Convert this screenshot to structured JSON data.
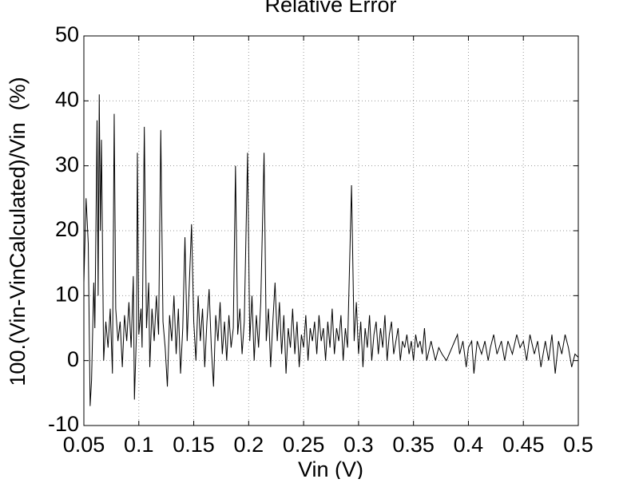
{
  "chart_data": {
    "type": "line",
    "title": "Relative Error",
    "x_label": "Vin (V)",
    "y_label": "100.(Vin-VinCalculated)/Vin  (%)",
    "x": [
      0.05,
      0.052,
      0.054,
      0.0557,
      0.057,
      0.059,
      0.06,
      0.062,
      0.063,
      0.064,
      0.065,
      0.066,
      0.068,
      0.07,
      0.072,
      0.074,
      0.076,
      0.0776,
      0.079,
      0.081,
      0.083,
      0.085,
      0.087,
      0.089,
      0.091,
      0.093,
      0.095,
      0.096,
      0.098,
      0.0987,
      0.1,
      0.102,
      0.103,
      0.105,
      0.107,
      0.109,
      0.11,
      0.112,
      0.114,
      0.116,
      0.118,
      0.12,
      0.122,
      0.124,
      0.126,
      0.128,
      0.13,
      0.132,
      0.134,
      0.136,
      0.138,
      0.14,
      0.142,
      0.144,
      0.146,
      0.148,
      0.15,
      0.152,
      0.154,
      0.156,
      0.158,
      0.16,
      0.162,
      0.164,
      0.166,
      0.168,
      0.17,
      0.172,
      0.174,
      0.176,
      0.178,
      0.18,
      0.182,
      0.184,
      0.186,
      0.188,
      0.19,
      0.192,
      0.194,
      0.196,
      0.199,
      0.201,
      0.203,
      0.205,
      0.207,
      0.209,
      0.211,
      0.214,
      0.216,
      0.218,
      0.22,
      0.222,
      0.224,
      0.226,
      0.228,
      0.23,
      0.232,
      0.234,
      0.236,
      0.238,
      0.24,
      0.242,
      0.244,
      0.246,
      0.248,
      0.25,
      0.252,
      0.254,
      0.256,
      0.258,
      0.26,
      0.262,
      0.264,
      0.266,
      0.268,
      0.27,
      0.272,
      0.274,
      0.276,
      0.278,
      0.28,
      0.282,
      0.284,
      0.286,
      0.288,
      0.29,
      0.2936,
      0.296,
      0.298,
      0.3,
      0.302,
      0.304,
      0.306,
      0.308,
      0.31,
      0.312,
      0.314,
      0.316,
      0.318,
      0.32,
      0.322,
      0.324,
      0.326,
      0.328,
      0.33,
      0.332,
      0.334,
      0.336,
      0.338,
      0.34,
      0.342,
      0.344,
      0.346,
      0.348,
      0.35,
      0.352,
      0.354,
      0.356,
      0.358,
      0.36,
      0.362,
      0.366,
      0.37,
      0.373,
      0.376,
      0.38,
      0.39,
      0.392,
      0.395,
      0.398,
      0.4,
      0.403,
      0.405,
      0.408,
      0.412,
      0.415,
      0.418,
      0.42,
      0.423,
      0.426,
      0.43,
      0.433,
      0.436,
      0.44,
      0.444,
      0.447,
      0.45,
      0.453,
      0.456,
      0.46,
      0.463,
      0.466,
      0.47,
      0.473,
      0.476,
      0.479,
      0.482,
      0.485,
      0.488,
      0.491,
      0.494,
      0.497,
      0.5
    ],
    "values": [
      12,
      25,
      18,
      -7,
      -3,
      12,
      5,
      37,
      10,
      41,
      20,
      34,
      0,
      6,
      2,
      8,
      -2,
      38,
      8,
      3,
      6,
      -1,
      7,
      3,
      9,
      2,
      13,
      -6,
      5,
      32,
      4,
      8,
      2,
      36,
      5,
      12,
      -1,
      8,
      3,
      10,
      4,
      35.5,
      6,
      2,
      -4,
      7,
      3,
      10,
      1,
      8,
      -2,
      5,
      19,
      3,
      12,
      21,
      6,
      0,
      10,
      3,
      8,
      -1,
      6,
      11,
      2,
      -4,
      7,
      3,
      9,
      1,
      6,
      0,
      7,
      2,
      5,
      30,
      4,
      8,
      1,
      6,
      32,
      3,
      10,
      0,
      7,
      2,
      9,
      32,
      3,
      8,
      -1,
      6,
      12,
      3,
      9,
      1,
      7,
      -2,
      5,
      2,
      8,
      1,
      6,
      -1,
      4,
      2,
      7,
      0,
      5,
      3,
      6,
      1,
      7,
      3,
      5,
      0,
      6,
      2,
      8,
      1,
      5,
      3,
      7,
      0,
      5,
      2,
      27,
      3,
      9,
      1,
      6,
      -1,
      5,
      2,
      7,
      0,
      4,
      6,
      1,
      5,
      2,
      7,
      0,
      4,
      6,
      1,
      3,
      5,
      0,
      3,
      2,
      4,
      1,
      3,
      0,
      4,
      2,
      3,
      1,
      5,
      0,
      3,
      0,
      2,
      1,
      0,
      4,
      1,
      3,
      -1,
      2,
      3,
      -2,
      3,
      1,
      3,
      0,
      2,
      4,
      1,
      3,
      0,
      3,
      1,
      4,
      2,
      3,
      0,
      4,
      1,
      3,
      -1,
      3,
      0,
      4,
      -2,
      3,
      1,
      4,
      2,
      -1,
      1,
      0.5
    ],
    "color": "#000000",
    "xlim": [
      0.05,
      0.5
    ],
    "xticks": [
      0.05,
      0.1,
      0.15,
      0.2,
      0.25,
      0.3,
      0.35,
      0.4,
      0.45,
      0.5
    ],
    "ylim": [
      -10,
      50
    ],
    "yticks": [
      -10,
      0,
      10,
      20,
      30,
      40,
      50
    ],
    "grid": true
  }
}
